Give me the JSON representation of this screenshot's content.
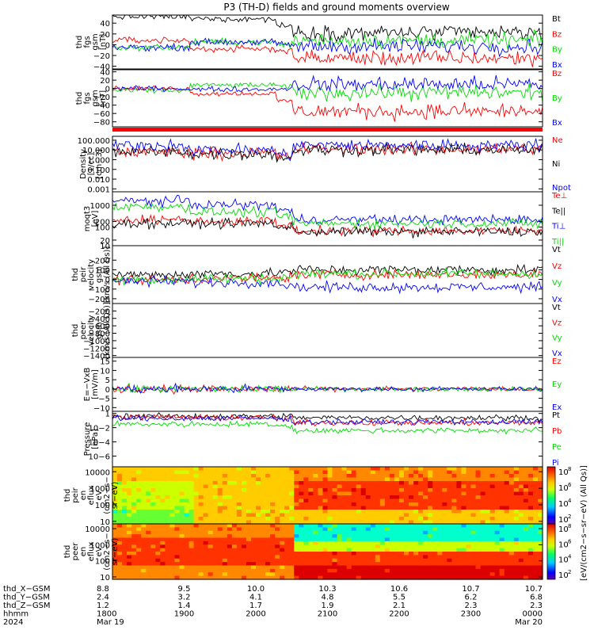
{
  "title": "P3 (TH-D) fields and ground moments overview",
  "colors": {
    "black": "#000000",
    "red": "#ff0000",
    "green": "#00dd00",
    "blue": "#0000ff"
  },
  "chart_data": [
    {
      "type": "line",
      "ylabel": [
        "thd",
        "fgs",
        "gsm",
        "[nT]"
      ],
      "yticks": [
        {
          "v": 40,
          "t": "40"
        },
        {
          "v": 20,
          "t": "20"
        },
        {
          "v": 0,
          "t": "0"
        },
        {
          "v": -20,
          "t": "−20"
        },
        {
          "v": -40,
          "t": "−40"
        }
      ],
      "ylim": [
        -45,
        55
      ],
      "series": [
        {
          "name": "Bt",
          "color": "black"
        },
        {
          "name": "Bz",
          "color": "red"
        },
        {
          "name": "By",
          "color": "green"
        },
        {
          "name": "Bx",
          "color": "blue"
        }
      ]
    },
    {
      "type": "line",
      "ylabel": [
        "thd",
        "fgs",
        "gsm",
        "[nT]"
      ],
      "yticks": [
        {
          "v": 40,
          "t": "40"
        },
        {
          "v": 20,
          "t": "20"
        },
        {
          "v": 0,
          "t": "0"
        },
        {
          "v": -20,
          "t": "−20"
        },
        {
          "v": -40,
          "t": "−40"
        },
        {
          "v": -60,
          "t": "−60"
        },
        {
          "v": -80,
          "t": "−80"
        }
      ],
      "ylim": [
        -92,
        45
      ],
      "series": [
        {
          "name": "Bz",
          "color": "red"
        },
        {
          "name": "By",
          "color": "green"
        },
        {
          "name": "Bx",
          "color": "blue"
        }
      ]
    },
    {
      "type": "line",
      "ylabel": [
        "Density",
        "[1/cc]",
        "[cm−3]"
      ],
      "yticks": [
        {
          "v": 2,
          "t": "100.000"
        },
        {
          "v": 1,
          "t": "10.000"
        },
        {
          "v": 0,
          "t": "1.000"
        },
        {
          "v": -1,
          "t": "0.100"
        },
        {
          "v": -2,
          "t": "0.010"
        },
        {
          "v": -3,
          "t": "0.001"
        }
      ],
      "ylim": [
        -3.3,
        2.4
      ],
      "series": [
        {
          "name": "Ne",
          "color": "red"
        },
        {
          "name": "Ni",
          "color": "black"
        },
        {
          "name": "Npot",
          "color": "blue"
        }
      ]
    },
    {
      "type": "line",
      "ylabel": [
        "moqt3",
        "[eV]"
      ],
      "yticks": [
        {
          "v": 3.176,
          "t": "1000"
        },
        {
          "v": 2.301,
          "t": "200"
        },
        {
          "v": 2,
          "t": "100"
        },
        {
          "v": 1.301,
          "t": "20"
        },
        {
          "v": 1,
          "t": "10"
        }
      ],
      "ylim": [
        1,
        3.9
      ],
      "series": [
        {
          "name": "Te⊥",
          "color": "red"
        },
        {
          "name": "Te||",
          "color": "black"
        },
        {
          "name": "Ti⊥",
          "color": "blue"
        },
        {
          "name": "Ti||",
          "color": "green"
        }
      ]
    },
    {
      "type": "line",
      "ylabel": [
        "thd",
        "peir",
        "velocity",
        "gsm",
        "[km/s (All Qs)]"
      ],
      "yticks": [
        {
          "v": 200,
          "t": "200"
        },
        {
          "v": 100,
          "t": "100"
        },
        {
          "v": 0,
          "t": "0"
        },
        {
          "v": -100,
          "t": "−100"
        },
        {
          "v": -200,
          "t": "−200"
        }
      ],
      "ylim": [
        -250,
        350
      ],
      "series": [
        {
          "name": "Vt",
          "color": "black"
        },
        {
          "name": "Vz",
          "color": "red"
        },
        {
          "name": "Vy",
          "color": "green"
        },
        {
          "name": "Vx",
          "color": "blue"
        }
      ]
    },
    {
      "type": "line",
      "ylabel": [
        "thd",
        "peer",
        "velocity",
        "gsm",
        "[km/s (All Qs)]"
      ],
      "yticks": [
        {
          "v": -200,
          "t": "−200"
        },
        {
          "v": -400,
          "t": "−400"
        },
        {
          "v": -600,
          "t": "−600"
        },
        {
          "v": -800,
          "t": "−800"
        },
        {
          "v": -1000,
          "t": "−1000"
        },
        {
          "v": -1200,
          "t": "−1200"
        },
        {
          "v": -1400,
          "t": "−1400"
        }
      ],
      "ylim": [
        -1450,
        0
      ],
      "series": [
        {
          "name": "Vt",
          "color": "black"
        },
        {
          "name": "Vz",
          "color": "red"
        },
        {
          "name": "Vy",
          "color": "green"
        },
        {
          "name": "Vx",
          "color": "blue"
        }
      ]
    },
    {
      "type": "line",
      "ylabel": [
        "E=−VxB",
        "[mV/m]"
      ],
      "yticks": [
        {
          "v": 15,
          "t": "15"
        },
        {
          "v": 10,
          "t": "10"
        },
        {
          "v": 5,
          "t": "5"
        },
        {
          "v": 0,
          "t": "0"
        },
        {
          "v": -5,
          "t": "−5"
        },
        {
          "v": -10,
          "t": "−10"
        }
      ],
      "ylim": [
        -12,
        17
      ],
      "series": [
        {
          "name": "Ez",
          "color": "red"
        },
        {
          "name": "Ey",
          "color": "green"
        },
        {
          "name": "Ex",
          "color": "blue"
        }
      ]
    },
    {
      "type": "line",
      "ylabel": [
        "Pressure",
        "[nPa]"
      ],
      "yticks": [
        {
          "v": 0,
          "t": "1"
        },
        {
          "v": -2,
          "t": "10−2"
        },
        {
          "v": -4,
          "t": "10−4"
        },
        {
          "v": -6,
          "t": "10−6"
        }
      ],
      "ylim": [
        -7.5,
        0.3
      ],
      "series": [
        {
          "name": "Pt",
          "color": "black"
        },
        {
          "name": "Pb",
          "color": "red"
        },
        {
          "name": "Pe",
          "color": "green"
        },
        {
          "name": "Pi",
          "color": "blue"
        }
      ]
    },
    {
      "type": "heatmap",
      "ylabel": [
        "thd",
        "peir",
        "en",
        "eflux",
        "eV",
        "(cm2−s−",
        "sr−eV)"
      ],
      "yticks": [
        {
          "v": 4,
          "t": "10000"
        },
        {
          "v": 3,
          "t": "1000"
        },
        {
          "v": 2,
          "t": "100"
        },
        {
          "v": 1,
          "t": "10"
        }
      ],
      "ylim": [
        0.85,
        4.3
      ]
    },
    {
      "type": "heatmap",
      "ylabel": [
        "thd",
        "peer",
        "en",
        "eflux",
        "eV",
        "(cm2−s−",
        "sr−eV)"
      ],
      "yticks": [
        {
          "v": 4,
          "t": "10000"
        },
        {
          "v": 3,
          "t": "1000"
        },
        {
          "v": 2,
          "t": "100"
        },
        {
          "v": 1,
          "t": "10"
        }
      ],
      "ylim": [
        0.85,
        4.3
      ]
    }
  ],
  "colorbar": {
    "label": "[eV/(cm2−s−sr−eV) (All Qs)]",
    "ticks_ion": [
      "108",
      "106",
      "104",
      "102"
    ],
    "ticks_ele": [
      "108",
      "106",
      "104",
      "102"
    ]
  },
  "x_axis": {
    "rows": [
      {
        "label": "thd_X−GSM",
        "values": [
          "8.8",
          "9.5",
          "10.0",
          "10.3",
          "10.6",
          "10.7",
          "10.7"
        ]
      },
      {
        "label": "thd_Y−GSM",
        "values": [
          "2.4",
          "3.2",
          "4.1",
          "4.8",
          "5.5",
          "6.2",
          "6.8"
        ]
      },
      {
        "label": "thd_Z−GSM",
        "values": [
          "1.2",
          "1.4",
          "1.7",
          "1.9",
          "2.1",
          "2.3",
          "2.3"
        ]
      },
      {
        "label": "hhmm",
        "values": [
          "1800",
          "1900",
          "2000",
          "2100",
          "2200",
          "2300",
          "0000"
        ]
      },
      {
        "label": "2024",
        "values": [
          "Mar 19",
          "",
          "",
          "",
          "",
          "",
          "Mar 20"
        ]
      }
    ]
  }
}
